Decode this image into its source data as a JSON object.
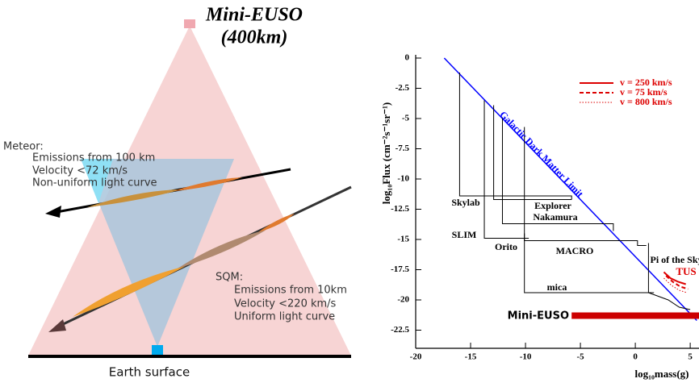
{
  "diagram": {
    "title": "Mini-EUSO",
    "subtitle": "(400km)",
    "meteor": {
      "heading": "Meteor:",
      "lines": [
        "Emissions from 100 km",
        "Velocity <72 km/s",
        "Non-uniform light curve"
      ]
    },
    "sqm": {
      "heading": "SQM:",
      "lines": [
        "Emissions from 10km",
        "Velocity <220 km/s",
        "Uniform light curve"
      ]
    },
    "ground": "Earth surface"
  },
  "chart_data": {
    "type": "line",
    "xlabel": "log₁₀mass(g)",
    "ylabel": "log₁₀Flux (cm⁻²s⁻¹sr⁻¹)",
    "xlim": [
      -20,
      5.8
    ],
    "ylim": [
      -24,
      0
    ],
    "xticks": [
      -20,
      -15,
      -10,
      -5,
      0,
      5
    ],
    "yticks": [
      0,
      -2.5,
      -5,
      -7.5,
      -10,
      -12.5,
      -15,
      -17.5,
      -20,
      -22.5
    ],
    "legend": "upper right",
    "annotations": [
      "TUS"
    ],
    "series": [
      {
        "name": "Galactic Dark Matter Limit",
        "color": "#0000ff",
        "linestyle": "solid",
        "linewidth": 1.5,
        "x": [
          -17.4,
          5.6
        ],
        "values": [
          0,
          -21.7
        ]
      },
      {
        "name": "Skylab",
        "color": "#000000",
        "linestyle": "solid",
        "linewidth": 1,
        "x": [
          -16,
          -16,
          -5.8,
          -5.8
        ],
        "values": [
          -1.2,
          -11.4,
          -11.4,
          -11.7
        ]
      },
      {
        "name": "Explorer",
        "color": "#000000",
        "linestyle": "solid",
        "linewidth": 1,
        "x": [
          -12.9,
          -12.9,
          -5.8
        ],
        "values": [
          -3.9,
          -11.7,
          -11.7
        ]
      },
      {
        "name": "Nakamura",
        "color": "#000000",
        "linestyle": "solid",
        "linewidth": 1,
        "x": [
          -12.1,
          -12.1,
          -2.0,
          -2.0
        ],
        "values": [
          -4.9,
          -13.7,
          -13.7,
          -14.3
        ]
      },
      {
        "name": "SLIM",
        "color": "#000000",
        "linestyle": "solid",
        "linewidth": 1,
        "x": [
          -13.75,
          -13.75,
          -9.7
        ],
        "values": [
          -3.5,
          -14.9,
          -14.9
        ]
      },
      {
        "name": "Orito",
        "color": "#000000",
        "linestyle": "solid",
        "linewidth": 1,
        "x": [
          -10.1,
          -10.1,
          -1.25
        ],
        "values": [
          -5.7,
          -15.1,
          -15.1
        ]
      },
      {
        "name": "MACRO",
        "color": "#000000",
        "linestyle": "solid",
        "linewidth": 1,
        "x": [
          -9.4,
          0.2,
          0.2,
          1.0
        ],
        "values": [
          -15.1,
          -15.1,
          -15.5,
          -15.5
        ]
      },
      {
        "name": "mica",
        "color": "#000000",
        "linestyle": "solid",
        "linewidth": 1,
        "x": [
          -10.1,
          -10.1,
          1.7
        ],
        "values": [
          -14.5,
          -19.4,
          -19.4
        ]
      },
      {
        "name": "Pi of the Sky",
        "color": "#000000",
        "linestyle": "solid",
        "linewidth": 1,
        "x": [
          1.2,
          1.2,
          3.0,
          4.0,
          5.0
        ],
        "values": [
          -15.3,
          -19.4,
          -20.0,
          -20.6,
          -20.8
        ]
      },
      {
        "name": "Mini-EUSO",
        "color": "#cc0000",
        "linestyle": "solid",
        "linewidth": 8,
        "x": [
          -5.8,
          5.8
        ],
        "values": [
          -21.3,
          -21.3
        ]
      },
      {
        "name": "v = 250 km/s",
        "color": "#dd0000",
        "linestyle": "solid",
        "linewidth": 2,
        "in_legend": true,
        "x": [
          2.6,
          3.2,
          3.9,
          4.6
        ],
        "values": [
          -17.7,
          -18.2,
          -18.5,
          -18.7
        ]
      },
      {
        "name": "v = 75 km/s",
        "color": "#dd0000",
        "linestyle": "dashed",
        "linewidth": 2,
        "in_legend": true,
        "x": [
          2.8,
          3.4,
          4.1,
          4.8
        ],
        "values": [
          -18.0,
          -18.5,
          -18.9,
          -19.1
        ]
      },
      {
        "name": "v = 800 km/s",
        "color": "#dd0000",
        "linestyle": "dotted",
        "linewidth": 1,
        "in_legend": true,
        "x": [
          2.6,
          3.3,
          4.0,
          4.7
        ],
        "values": [
          -18.2,
          -18.8,
          -19.2,
          -19.4
        ]
      }
    ]
  }
}
